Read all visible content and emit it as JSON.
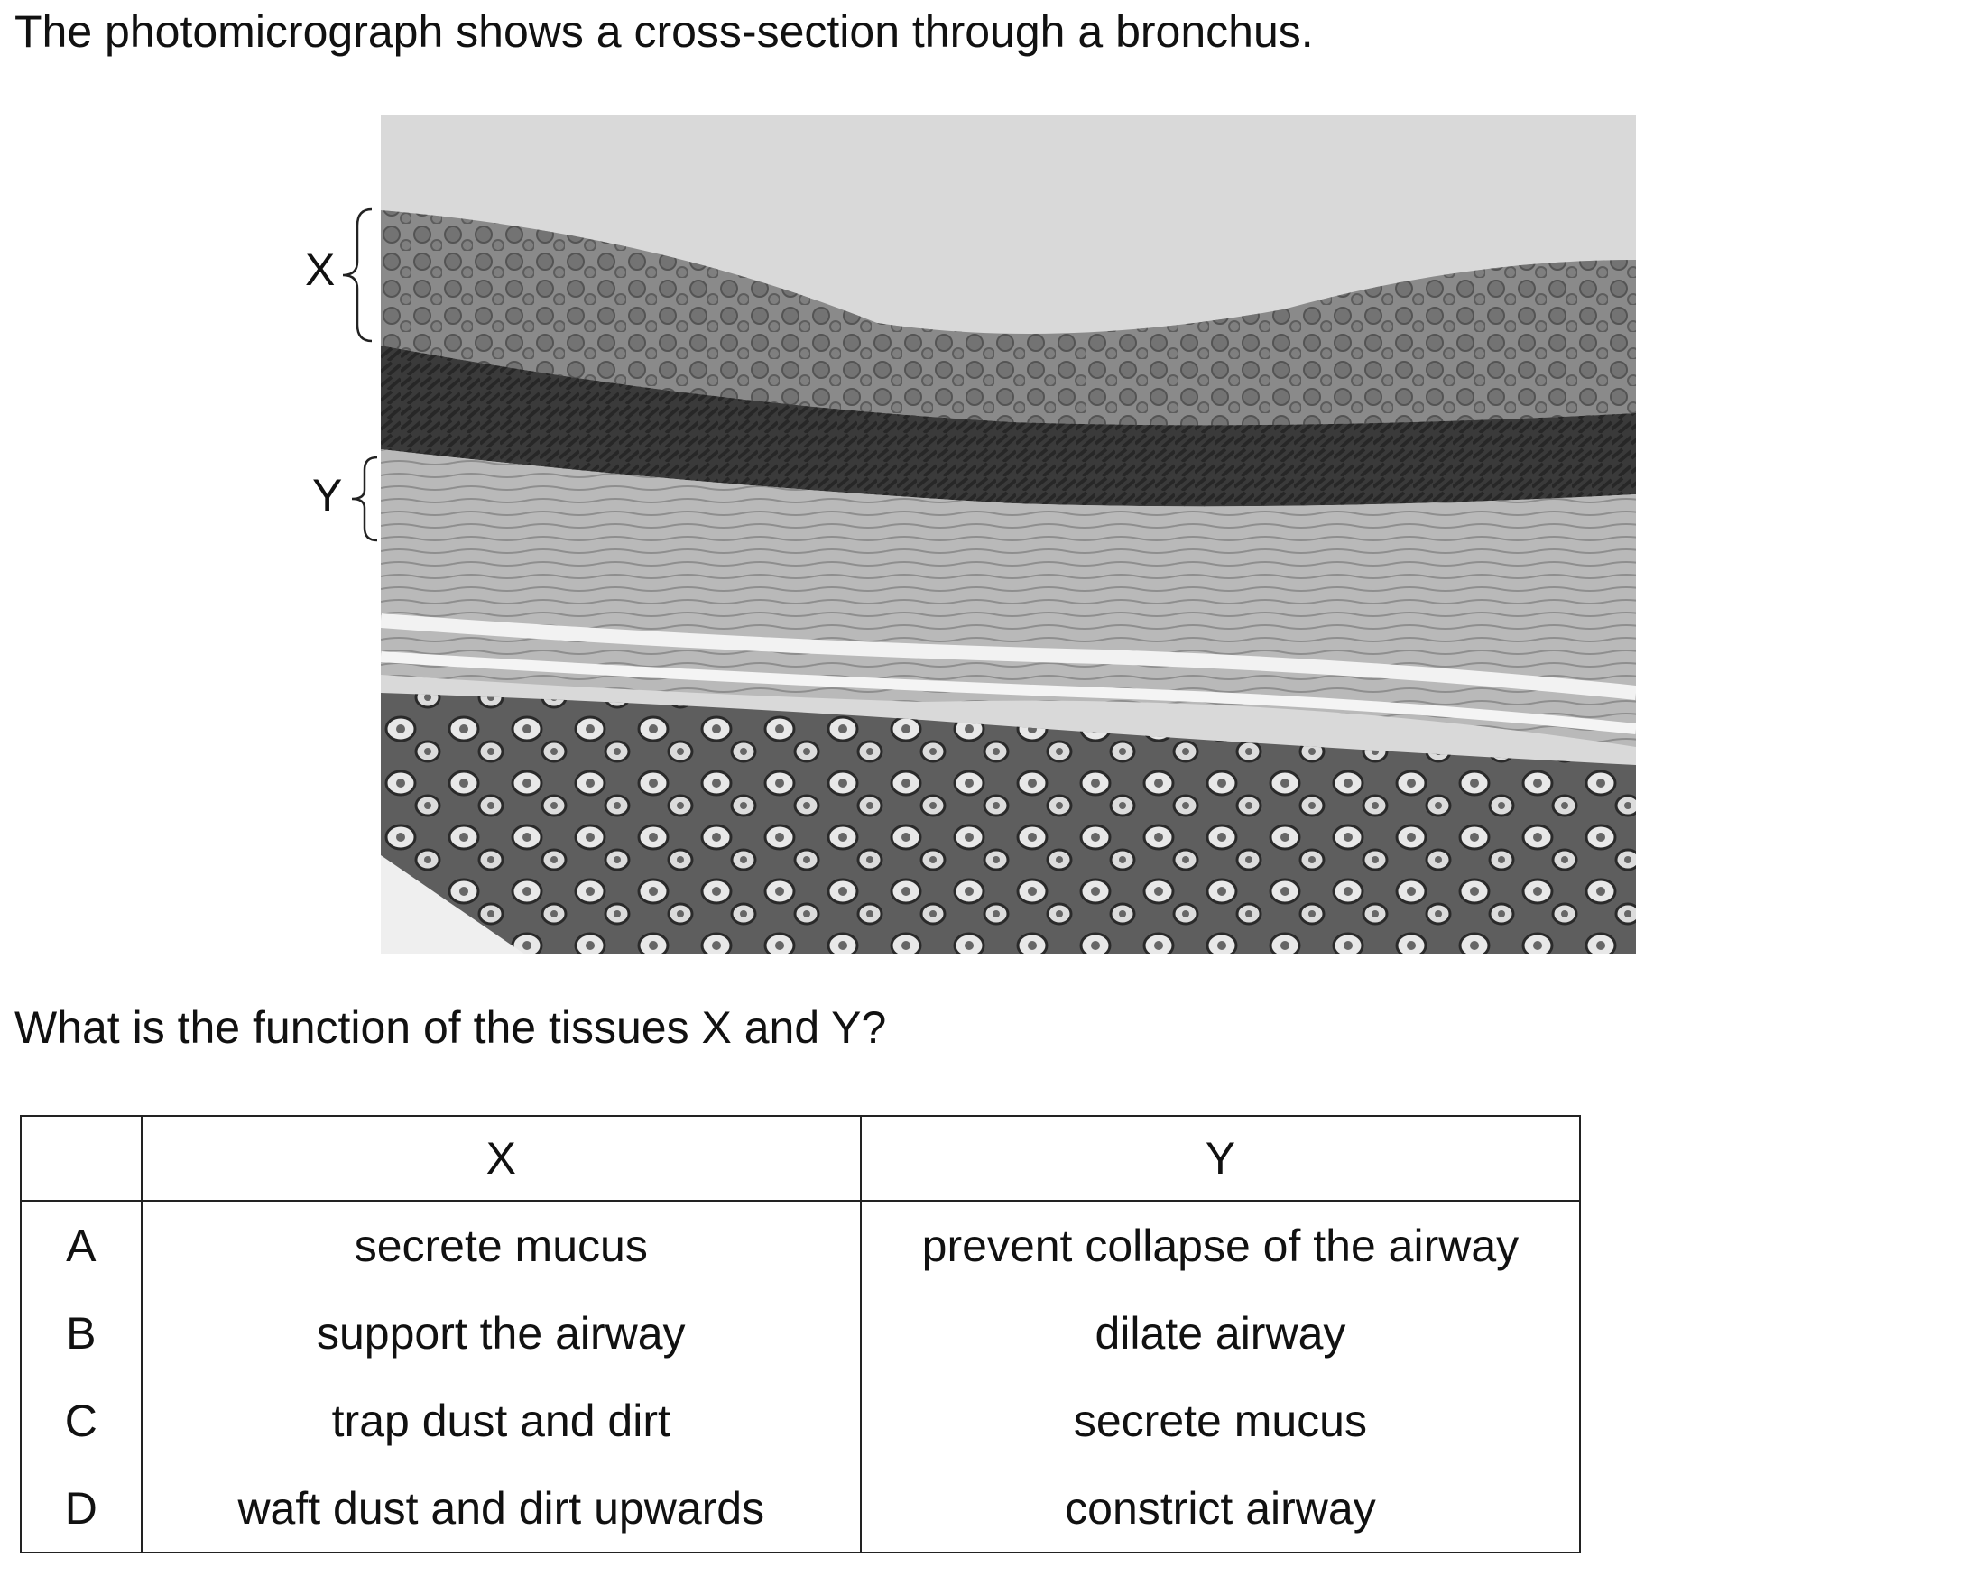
{
  "intro": "The photomicrograph shows a cross-section through a bronchus.",
  "figure": {
    "labels": {
      "x": "X",
      "y": "Y"
    },
    "colors": {
      "background": "#d9d9d9",
      "epithelium": "#8a8a8a",
      "muscle": "#3a3a3a",
      "connective": "#b9b9b9",
      "cartilage": "#5e5e5e"
    }
  },
  "question": "What is the function of the tissues X and Y?",
  "table": {
    "headers": [
      "",
      "X",
      "Y"
    ],
    "rows": [
      {
        "letter": "A",
        "x": "secrete mucus",
        "y": "prevent collapse of the airway"
      },
      {
        "letter": "B",
        "x": "support the airway",
        "y": "dilate airway"
      },
      {
        "letter": "C",
        "x": "trap dust and dirt",
        "y": "secrete mucus"
      },
      {
        "letter": "D",
        "x": "waft dust and dirt upwards",
        "y": "constrict airway"
      }
    ]
  }
}
